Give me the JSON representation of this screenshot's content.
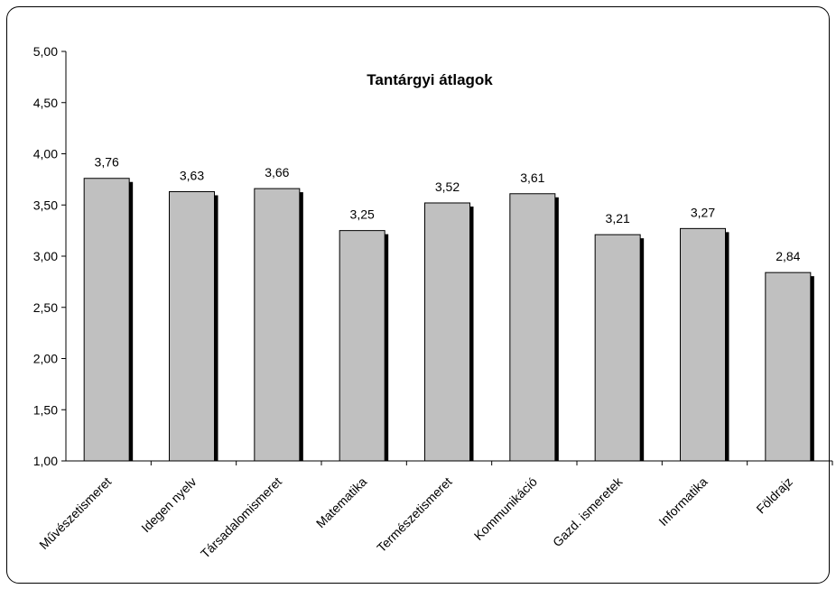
{
  "chart_data": {
    "type": "bar",
    "title": "Tantárgyi átlagok",
    "xlabel": "",
    "ylabel": "",
    "ylim": [
      1.0,
      5.0
    ],
    "yticks": [
      "1,00",
      "1,50",
      "2,00",
      "2,50",
      "3,00",
      "3,50",
      "4,00",
      "4,50",
      "5,00"
    ],
    "categories": [
      "Művészetismeret",
      "Idegen nyelv",
      "Társadalomismeret",
      "Matematika",
      "Természetismeret",
      "Kommunikáció",
      "Gazd. ismeretek",
      "Informatika",
      "Földrajz"
    ],
    "values": [
      3.76,
      3.63,
      3.66,
      3.25,
      3.52,
      3.61,
      3.21,
      3.27,
      2.84
    ],
    "value_labels": [
      "3,76",
      "3,63",
      "3,66",
      "3,25",
      "3,52",
      "3,61",
      "3,21",
      "3,27",
      "2,84"
    ],
    "grid": false,
    "legend": "none",
    "colors": {
      "bar": "#c0c0c0",
      "bar_border": "#000000",
      "bar_shadow": "#000000"
    }
  }
}
